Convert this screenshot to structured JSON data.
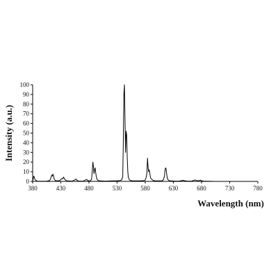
{
  "chart_data": {
    "type": "line",
    "xlabel": "Wavelength (nm)",
    "ylabel": "Intensity (a.u.)",
    "xlim": [
      380,
      780
    ],
    "ylim": [
      0,
      100
    ],
    "x_ticks": [
      380,
      430,
      480,
      530,
      580,
      630,
      680,
      730,
      780
    ],
    "y_ticks": [
      0,
      10,
      20,
      30,
      40,
      50,
      60,
      70,
      80,
      90,
      100
    ],
    "grid": false,
    "line_color": "#000000",
    "series": [
      {
        "values": [
          [
            380,
            0.5
          ],
          [
            381,
            3
          ],
          [
            382,
            5.5
          ],
          [
            383,
            4
          ],
          [
            384,
            2
          ],
          [
            386,
            1
          ],
          [
            388,
            0.3
          ],
          [
            395,
            0.2
          ],
          [
            405,
            0.3
          ],
          [
            410,
            0.8
          ],
          [
            412,
            3
          ],
          [
            414,
            6.5
          ],
          [
            415,
            5.5
          ],
          [
            416,
            7.5
          ],
          [
            417,
            6
          ],
          [
            418,
            3
          ],
          [
            420,
            1
          ],
          [
            423,
            0.5
          ],
          [
            428,
            0.8
          ],
          [
            430,
            2
          ],
          [
            432,
            3
          ],
          [
            433,
            2.5
          ],
          [
            435,
            4.5
          ],
          [
            436,
            3
          ],
          [
            438,
            1.5
          ],
          [
            441,
            0.5
          ],
          [
            450,
            0.3
          ],
          [
            455,
            1.5
          ],
          [
            457,
            2.5
          ],
          [
            459,
            1
          ],
          [
            462,
            0.3
          ],
          [
            470,
            0.3
          ],
          [
            474,
            1.5
          ],
          [
            476,
            2
          ],
          [
            478,
            0.8
          ],
          [
            482,
            0.5
          ],
          [
            484,
            1.5
          ],
          [
            485,
            4
          ],
          [
            486,
            12
          ],
          [
            487,
            20
          ],
          [
            488,
            15
          ],
          [
            489,
            8
          ],
          [
            490,
            12
          ],
          [
            491,
            14
          ],
          [
            492,
            9
          ],
          [
            493,
            5
          ],
          [
            494,
            2.5
          ],
          [
            496,
            1
          ],
          [
            500,
            0.5
          ],
          [
            510,
            0.3
          ],
          [
            520,
            0.5
          ],
          [
            530,
            0.6
          ],
          [
            535,
            0.8
          ],
          [
            538,
            1.5
          ],
          [
            540,
            5
          ],
          [
            541,
            40
          ],
          [
            542,
            90
          ],
          [
            543,
            100
          ],
          [
            544,
            65
          ],
          [
            545,
            30
          ],
          [
            546,
            52
          ],
          [
            547,
            48
          ],
          [
            548,
            25
          ],
          [
            549,
            10
          ],
          [
            550,
            4
          ],
          [
            552,
            1.5
          ],
          [
            555,
            0.8
          ],
          [
            560,
            0.5
          ],
          [
            570,
            0.5
          ],
          [
            578,
            0.8
          ],
          [
            580,
            1.5
          ],
          [
            581,
            3
          ],
          [
            582,
            5
          ],
          [
            583,
            9
          ],
          [
            584,
            24
          ],
          [
            585,
            15
          ],
          [
            586,
            10
          ],
          [
            587,
            12
          ],
          [
            588,
            9
          ],
          [
            589,
            5
          ],
          [
            590,
            3
          ],
          [
            592,
            2
          ],
          [
            594,
            1
          ],
          [
            596,
            0.6
          ],
          [
            600,
            0.5
          ],
          [
            605,
            0.5
          ],
          [
            610,
            0.6
          ],
          [
            612,
            1.5
          ],
          [
            614,
            5
          ],
          [
            615,
            11
          ],
          [
            616,
            14
          ],
          [
            617,
            13
          ],
          [
            618,
            8
          ],
          [
            619,
            4
          ],
          [
            620,
            2
          ],
          [
            622,
            1
          ],
          [
            625,
            0.5
          ],
          [
            635,
            0.3
          ],
          [
            640,
            0.4
          ],
          [
            645,
            0.8
          ],
          [
            648,
            1.2
          ],
          [
            650,
            0.6
          ],
          [
            655,
            0.3
          ],
          [
            662,
            0.3
          ],
          [
            665,
            0.8
          ],
          [
            668,
            1.5
          ],
          [
            670,
            1.2
          ],
          [
            673,
            0.6
          ],
          [
            676,
            0.8
          ],
          [
            678,
            1.3
          ],
          [
            680,
            0.6
          ],
          [
            684,
            0.3
          ],
          [
            690,
            0.2
          ],
          [
            700,
            0.1
          ]
        ]
      }
    ]
  }
}
